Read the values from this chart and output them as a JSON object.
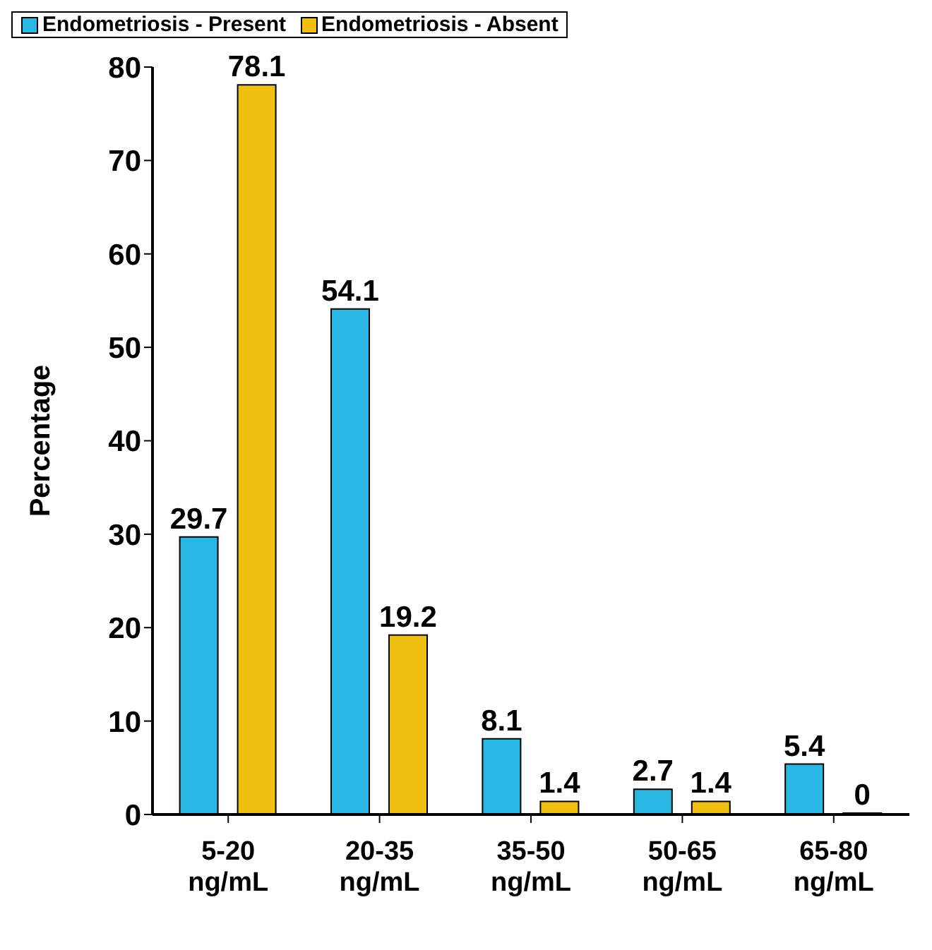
{
  "chart_data": {
    "type": "bar",
    "ylabel": "Percentage",
    "categories": [
      "5-20 ng/mL",
      "20-35 ng/mL",
      "35-50 ng/mL",
      "50-65 ng/mL",
      "65-80 ng/mL"
    ],
    "series": [
      {
        "name": "Endometriosis - Present",
        "color": "#29b8e4",
        "values": [
          29.7,
          54.1,
          8.1,
          2.7,
          5.4
        ]
      },
      {
        "name": "Endometriosis - Absent",
        "color": "#f0c010",
        "values": [
          78.1,
          19.2,
          1.4,
          1.4,
          0
        ]
      }
    ],
    "ylim": [
      0,
      80
    ],
    "yticks": [
      0,
      10,
      20,
      30,
      40,
      50,
      60,
      70,
      80
    ],
    "grid": false,
    "legend": "top left",
    "data_labels": true
  }
}
